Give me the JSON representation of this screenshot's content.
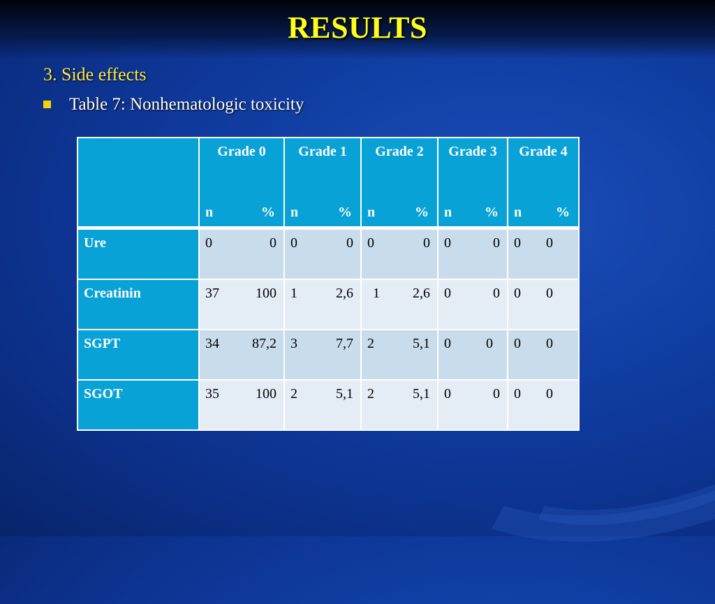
{
  "title": "RESULTS",
  "section": "3. Side effects",
  "table_caption_lead": "Table 7:",
  "table_caption_rest": " Nonhematologic toxicity",
  "grades": [
    {
      "name": "Grade 0",
      "n": "n",
      "pct": "%"
    },
    {
      "name": "Grade 1",
      "n": "n",
      "pct": "%"
    },
    {
      "name": "Grade  2",
      "n": "n",
      "pct": "%"
    },
    {
      "name": "Grade 3",
      "n": "n",
      "pct": "%"
    },
    {
      "name": "Grade 4",
      "n": "n",
      "pct": "%"
    }
  ],
  "rows": [
    {
      "label": "Ure",
      "cells": [
        [
          "0",
          "0"
        ],
        [
          "0",
          "0"
        ],
        [
          "0",
          "0"
        ],
        [
          "0",
          "0"
        ],
        [
          "0",
          "0"
        ]
      ]
    },
    {
      "label": "Creatinin",
      "cells": [
        [
          "37",
          "100"
        ],
        [
          "1",
          "2,6"
        ],
        [
          "1",
          "2,6"
        ],
        [
          "0",
          "0"
        ],
        [
          "0",
          "0"
        ]
      ]
    },
    {
      "label": "SGPT",
      "cells": [
        [
          "34",
          "87,2"
        ],
        [
          "3",
          "7,7"
        ],
        [
          "2",
          "5,1"
        ],
        [
          "0",
          "0"
        ],
        [
          "0",
          "0"
        ]
      ]
    },
    {
      "label": "SGOT",
      "cells": [
        [
          "35",
          "100"
        ],
        [
          "2",
          "5,1"
        ],
        [
          "2",
          "5,1"
        ],
        [
          "0",
          "0"
        ],
        [
          "0",
          "0"
        ]
      ]
    }
  ],
  "colors": {
    "title": "#ffff1a",
    "header_bg": "#08a2d6",
    "bullet": "#f5d40a"
  }
}
